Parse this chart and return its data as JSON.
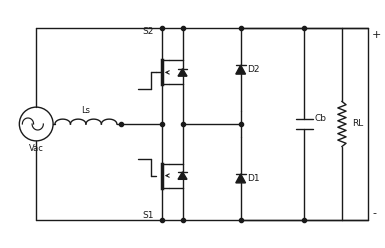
{
  "bg_color": "#ffffff",
  "line_color": "#1a1a1a",
  "lw": 1.0,
  "dot_r": 3.0,
  "fig_w": 3.85,
  "fig_h": 2.48,
  "dpi": 100,
  "labels": {
    "vac": "Vac",
    "ls": "Ls",
    "s1": "S1",
    "s2": "S2",
    "d1": "D1",
    "d2": "D2",
    "cb": "Cb",
    "rl": "RL",
    "plus": "+",
    "minus": "-"
  }
}
